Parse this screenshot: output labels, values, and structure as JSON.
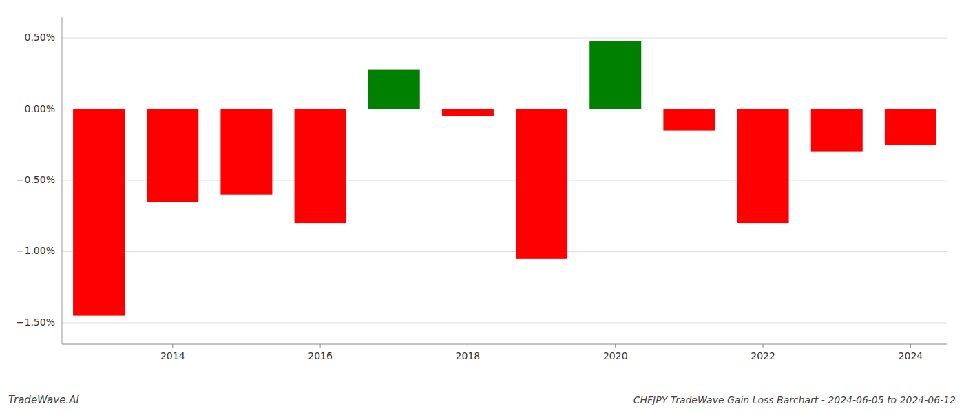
{
  "chart_data": {
    "type": "bar",
    "title": "CHFJPY TradeWave Gain Loss Barchart - 2024-06-05 to 2024-06-12",
    "annotations": [
      "TradeWave.AI"
    ],
    "x": [
      2013,
      2014,
      2015,
      2016,
      2017,
      2018,
      2019,
      2020,
      2021,
      2022,
      2023,
      2024
    ],
    "values": [
      -1.45,
      -0.65,
      -0.6,
      -0.8,
      0.28,
      -0.05,
      -1.05,
      0.48,
      -0.15,
      -0.8,
      -0.3,
      -0.25
    ],
    "colors": [
      "red",
      "red",
      "red",
      "red",
      "green",
      "red",
      "red",
      "green",
      "red",
      "red",
      "red",
      "red"
    ],
    "xlim": [
      2012.5,
      2024.5
    ],
    "xticks": [
      2014,
      2016,
      2018,
      2020,
      2022,
      2024
    ],
    "ylim": [
      -1.65,
      0.65
    ],
    "yticks": [
      {
        "value": -1.5,
        "label": "−1.50%"
      },
      {
        "value": -1.0,
        "label": "−1.00%"
      },
      {
        "value": -0.5,
        "label": "−0.50%"
      },
      {
        "value": 0.0,
        "label": "0.00%"
      },
      {
        "value": 0.5,
        "label": "0.50%"
      }
    ],
    "grid": true
  }
}
